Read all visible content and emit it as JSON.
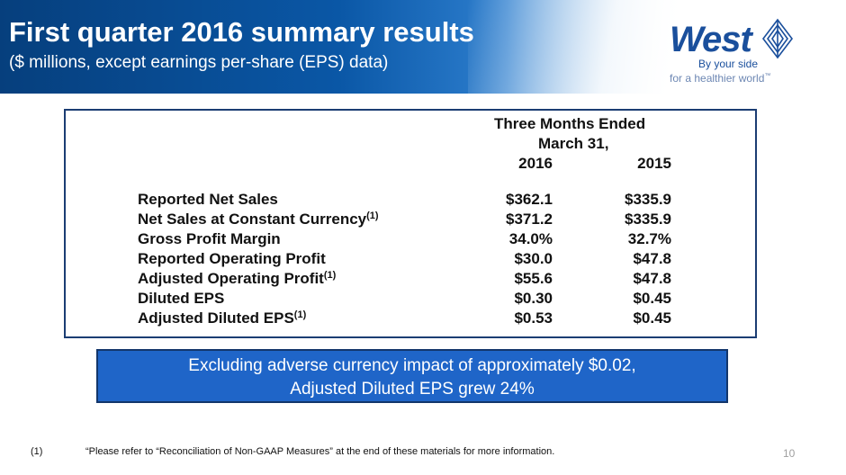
{
  "header": {
    "title": "First quarter 2016 summary results",
    "subtitle": "($ millions, except earnings per-share (EPS) data)"
  },
  "logo": {
    "word": "West",
    "tagline_line1": "By your side",
    "tagline_line2": "for a healthier world",
    "tagline_mark": "™",
    "color": "#1a4f9c"
  },
  "table": {
    "header_line1": "Three Months Ended",
    "header_line2": "March 31,",
    "col1": "2016",
    "col2": "2015",
    "rows": [
      {
        "label": "Reported Net Sales",
        "sup": "",
        "v2016": "$362.1",
        "v2015": "$335.9"
      },
      {
        "label": "Net Sales at Constant Currency",
        "sup": "(1)",
        "v2016": "$371.2",
        "v2015": "$335.9"
      },
      {
        "label": "Gross Profit Margin",
        "sup": "",
        "v2016": "34.0%",
        "v2015": "32.7%"
      },
      {
        "label": "Reported Operating Profit",
        "sup": "",
        "v2016": "$30.0",
        "v2015": "$47.8"
      },
      {
        "label": "Adjusted Operating Profit",
        "sup": "(1)",
        "v2016": "$55.6",
        "v2015": "$47.8"
      },
      {
        "label": "Diluted EPS",
        "sup": "",
        "v2016": "$0.30",
        "v2015": "$0.45"
      },
      {
        "label": "Adjusted Diluted EPS",
        "sup": "(1)",
        "v2016": "$0.53",
        "v2015": "$0.45"
      }
    ]
  },
  "callout": {
    "line1": "Excluding adverse currency impact of approximately $0.02,",
    "line2": "Adjusted Diluted EPS grew 24%"
  },
  "footnote": {
    "marker": "(1)",
    "text": "“Please refer to “Reconciliation of Non-GAAP Measures” at the end of these materials for more information."
  },
  "page_number": "10",
  "colors": {
    "header_blue": "#0a57a6",
    "callout_blue": "#1f65c8",
    "table_border": "#1b3d73"
  }
}
